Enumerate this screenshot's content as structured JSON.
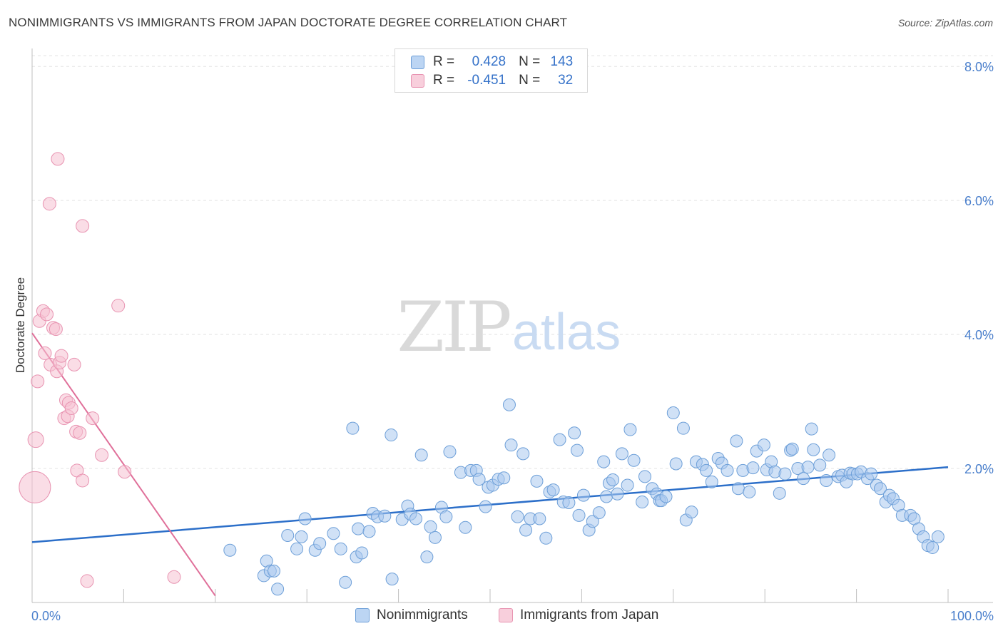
{
  "title": "NONIMMIGRANTS VS IMMIGRANTS FROM JAPAN DOCTORATE DEGREE CORRELATION CHART",
  "source": "Source: ZipAtlas.com",
  "watermark": {
    "zip": "ZIP",
    "atlas": "atlas"
  },
  "colors": {
    "blue_fill": "#a9c8ee",
    "blue_stroke": "#6d9fd8",
    "blue_line": "#2c6fc9",
    "pink_fill": "#f6c1d2",
    "pink_stroke": "#e893b1",
    "pink_line": "#e0709a",
    "tick_label": "#4a7fcc",
    "grid": "#e3e3e3"
  },
  "stats": [
    {
      "r_label": "R =",
      "r_value": "0.428",
      "n_label": "N =",
      "n_value": "143",
      "series": "blue"
    },
    {
      "r_label": "R =",
      "r_value": "-0.451",
      "n_label": "N =",
      "n_value": "32",
      "series": "pink"
    }
  ],
  "legend": [
    {
      "label": "Nonimmigrants",
      "series": "blue"
    },
    {
      "label": "Immigrants from Japan",
      "series": "pink"
    }
  ],
  "chart_data": {
    "type": "scatter",
    "title": "NONIMMIGRANTS VS IMMIGRANTS FROM JAPAN DOCTORATE DEGREE CORRELATION CHART",
    "xlabel": "",
    "ylabel": "Doctorate Degree",
    "xlim": [
      0,
      100
    ],
    "ylim": [
      0,
      8.3
    ],
    "x_tick_labels": [
      {
        "value": 0,
        "label": "0.0%"
      },
      {
        "value": 100,
        "label": "100.0%"
      }
    ],
    "y_tick_labels": [
      {
        "value": 2,
        "label": "2.0%"
      },
      {
        "value": 4,
        "label": "4.0%"
      },
      {
        "value": 6,
        "label": "6.0%"
      },
      {
        "value": 8,
        "label": "8.0%"
      }
    ],
    "x_minor_ticks": [
      0,
      10,
      20,
      30,
      40,
      50,
      60,
      70,
      80,
      90,
      100
    ],
    "grid": "horizontal dashed",
    "series": [
      {
        "name": "Nonimmigrants",
        "color": "#a9c8ee",
        "trend": {
          "x": [
            0,
            100
          ],
          "y": [
            0.9,
            2.02
          ]
        },
        "points": [
          [
            21.6,
            0.78
          ],
          [
            25.3,
            0.4
          ],
          [
            25.6,
            0.62
          ],
          [
            26.0,
            0.47
          ],
          [
            26.4,
            0.47
          ],
          [
            26.8,
            0.2
          ],
          [
            27.9,
            1.0
          ],
          [
            28.9,
            0.8
          ],
          [
            29.4,
            0.98
          ],
          [
            29.8,
            1.25
          ],
          [
            30.9,
            0.78
          ],
          [
            31.4,
            0.88
          ],
          [
            32.9,
            1.03
          ],
          [
            33.7,
            0.8
          ],
          [
            34.2,
            0.3
          ],
          [
            35.0,
            2.6
          ],
          [
            35.4,
            0.68
          ],
          [
            35.6,
            1.1
          ],
          [
            36.0,
            0.74
          ],
          [
            36.8,
            1.06
          ],
          [
            37.2,
            1.33
          ],
          [
            37.7,
            1.28
          ],
          [
            38.5,
            1.29
          ],
          [
            39.2,
            2.5
          ],
          [
            39.3,
            0.35
          ],
          [
            40.4,
            1.24
          ],
          [
            41.0,
            1.44
          ],
          [
            41.3,
            1.32
          ],
          [
            41.9,
            1.25
          ],
          [
            42.5,
            2.2
          ],
          [
            43.1,
            0.68
          ],
          [
            43.5,
            1.13
          ],
          [
            44.0,
            0.97
          ],
          [
            44.7,
            1.42
          ],
          [
            45.2,
            1.28
          ],
          [
            45.6,
            2.25
          ],
          [
            46.8,
            1.94
          ],
          [
            47.3,
            1.12
          ],
          [
            47.9,
            1.97
          ],
          [
            48.5,
            1.97
          ],
          [
            48.8,
            1.84
          ],
          [
            49.5,
            1.43
          ],
          [
            49.8,
            1.72
          ],
          [
            50.3,
            1.75
          ],
          [
            50.9,
            1.84
          ],
          [
            51.5,
            1.86
          ],
          [
            52.1,
            2.95
          ],
          [
            52.3,
            2.35
          ],
          [
            53.0,
            1.28
          ],
          [
            53.6,
            2.22
          ],
          [
            53.9,
            1.08
          ],
          [
            54.4,
            1.25
          ],
          [
            55.1,
            1.81
          ],
          [
            55.4,
            1.25
          ],
          [
            56.1,
            0.96
          ],
          [
            56.5,
            1.65
          ],
          [
            56.9,
            1.68
          ],
          [
            57.6,
            2.43
          ],
          [
            58.0,
            1.5
          ],
          [
            58.6,
            1.49
          ],
          [
            59.2,
            2.53
          ],
          [
            59.5,
            2.27
          ],
          [
            59.7,
            1.3
          ],
          [
            60.2,
            1.6
          ],
          [
            60.8,
            1.08
          ],
          [
            61.2,
            1.21
          ],
          [
            61.9,
            1.34
          ],
          [
            62.4,
            2.1
          ],
          [
            62.7,
            1.58
          ],
          [
            63.0,
            1.78
          ],
          [
            63.4,
            1.83
          ],
          [
            63.9,
            1.62
          ],
          [
            64.4,
            2.22
          ],
          [
            65.0,
            1.75
          ],
          [
            65.3,
            2.58
          ],
          [
            65.7,
            2.12
          ],
          [
            66.6,
            1.5
          ],
          [
            66.9,
            1.88
          ],
          [
            67.7,
            1.7
          ],
          [
            68.2,
            1.62
          ],
          [
            68.5,
            1.52
          ],
          [
            68.7,
            1.52
          ],
          [
            69.2,
            1.58
          ],
          [
            70.0,
            2.83
          ],
          [
            70.3,
            2.07
          ],
          [
            71.1,
            2.6
          ],
          [
            71.4,
            1.23
          ],
          [
            72.0,
            1.35
          ],
          [
            72.5,
            2.1
          ],
          [
            73.2,
            2.06
          ],
          [
            73.6,
            1.97
          ],
          [
            74.2,
            1.8
          ],
          [
            74.9,
            2.15
          ],
          [
            75.3,
            2.08
          ],
          [
            75.9,
            1.97
          ],
          [
            76.9,
            2.41
          ],
          [
            77.1,
            1.7
          ],
          [
            77.6,
            1.97
          ],
          [
            78.3,
            1.65
          ],
          [
            78.7,
            2.01
          ],
          [
            79.1,
            2.26
          ],
          [
            79.9,
            2.35
          ],
          [
            80.2,
            1.98
          ],
          [
            80.7,
            2.1
          ],
          [
            81.1,
            1.95
          ],
          [
            81.6,
            1.63
          ],
          [
            82.2,
            1.92
          ],
          [
            82.8,
            2.27
          ],
          [
            83.0,
            2.29
          ],
          [
            83.6,
            2.0
          ],
          [
            84.2,
            1.85
          ],
          [
            84.7,
            2.02
          ],
          [
            85.1,
            2.59
          ],
          [
            85.3,
            2.28
          ],
          [
            86.0,
            2.05
          ],
          [
            86.7,
            1.82
          ],
          [
            87.0,
            2.2
          ],
          [
            88.0,
            1.88
          ],
          [
            88.4,
            1.9
          ],
          [
            88.9,
            1.8
          ],
          [
            89.3,
            1.93
          ],
          [
            89.6,
            1.92
          ],
          [
            90.1,
            1.92
          ],
          [
            90.5,
            1.95
          ],
          [
            91.2,
            1.85
          ],
          [
            91.6,
            1.92
          ],
          [
            92.2,
            1.75
          ],
          [
            92.6,
            1.7
          ],
          [
            93.2,
            1.5
          ],
          [
            93.6,
            1.6
          ],
          [
            94.0,
            1.55
          ],
          [
            94.6,
            1.45
          ],
          [
            95.0,
            1.3
          ],
          [
            95.9,
            1.3
          ],
          [
            96.3,
            1.25
          ],
          [
            96.8,
            1.1
          ],
          [
            97.3,
            0.98
          ],
          [
            97.8,
            0.85
          ],
          [
            98.3,
            0.82
          ],
          [
            98.9,
            0.98
          ]
        ]
      },
      {
        "name": "Immigrants from Japan",
        "color": "#f6c1d2",
        "trend": {
          "x": [
            0,
            20
          ],
          "y": [
            4.02,
            0.1
          ]
        },
        "points": [
          [
            0.3,
            1.72,
            22
          ],
          [
            0.4,
            2.43,
            11
          ],
          [
            0.6,
            3.3,
            9
          ],
          [
            0.8,
            4.2,
            9
          ],
          [
            1.2,
            4.35,
            9
          ],
          [
            1.4,
            3.72,
            9
          ],
          [
            1.6,
            4.3,
            9
          ],
          [
            1.9,
            5.95,
            9
          ],
          [
            2.0,
            3.55,
            9
          ],
          [
            2.3,
            4.1,
            9
          ],
          [
            2.6,
            4.08,
            9
          ],
          [
            2.7,
            3.45,
            9
          ],
          [
            2.8,
            6.62,
            9
          ],
          [
            3.0,
            3.58,
            9
          ],
          [
            3.2,
            3.68,
            9
          ],
          [
            3.5,
            2.75,
            9
          ],
          [
            3.7,
            3.02,
            9
          ],
          [
            3.9,
            2.78,
            9
          ],
          [
            4.0,
            2.98,
            9
          ],
          [
            4.3,
            2.9,
            9
          ],
          [
            4.6,
            3.55,
            9
          ],
          [
            4.8,
            2.55,
            9
          ],
          [
            4.9,
            1.97,
            9
          ],
          [
            5.2,
            2.53,
            9
          ],
          [
            5.5,
            1.82,
            9
          ],
          [
            5.5,
            5.62,
            9
          ],
          [
            6.0,
            0.32,
            9
          ],
          [
            6.6,
            2.75,
            9
          ],
          [
            7.6,
            2.2,
            9
          ],
          [
            9.4,
            4.43,
            9
          ],
          [
            10.1,
            1.95,
            9
          ],
          [
            15.5,
            0.38,
            9
          ]
        ]
      }
    ]
  }
}
